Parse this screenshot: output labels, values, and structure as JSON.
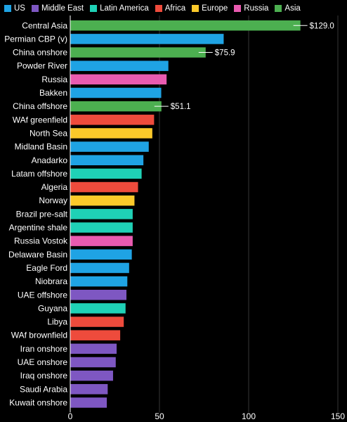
{
  "legend": [
    {
      "label": "US",
      "color": "#1fa3e4"
    },
    {
      "label": "Middle East",
      "color": "#7e57c2"
    },
    {
      "label": "Latin America",
      "color": "#1fd1b6"
    },
    {
      "label": "Africa",
      "color": "#ee4b3c"
    },
    {
      "label": "Europe",
      "color": "#fbc92a"
    },
    {
      "label": "Russia",
      "color": "#e95bb0"
    },
    {
      "label": "Asia",
      "color": "#4caf50"
    }
  ],
  "chart_data": {
    "type": "bar",
    "orientation": "horizontal",
    "xlim": [
      0,
      150
    ],
    "x_ticks": [
      0,
      50,
      100,
      150
    ],
    "grid": true,
    "legend_position": "top",
    "bars": [
      {
        "label": "Central Asia",
        "value": 129.0,
        "region": "Asia",
        "annotation": "$129.0"
      },
      {
        "label": "Permian CBP (v)",
        "value": 86,
        "region": "US"
      },
      {
        "label": "China onshore",
        "value": 75.9,
        "region": "Asia",
        "annotation": "$75.9"
      },
      {
        "label": "Powder River",
        "value": 55,
        "region": "US"
      },
      {
        "label": "Russia",
        "value": 54,
        "region": "Russia"
      },
      {
        "label": "Bakken",
        "value": 51,
        "region": "US"
      },
      {
        "label": "China offshore",
        "value": 51.1,
        "region": "Asia",
        "annotation": "$51.1"
      },
      {
        "label": "WAf greenfield",
        "value": 47,
        "region": "Africa"
      },
      {
        "label": "North Sea",
        "value": 46,
        "region": "Europe"
      },
      {
        "label": "Midland Basin",
        "value": 44,
        "region": "US"
      },
      {
        "label": "Anadarko",
        "value": 41,
        "region": "US"
      },
      {
        "label": "Latam offshore",
        "value": 40,
        "region": "Latin America"
      },
      {
        "label": "Algeria",
        "value": 38,
        "region": "Africa"
      },
      {
        "label": "Norway",
        "value": 36,
        "region": "Europe"
      },
      {
        "label": "Brazil pre-salt",
        "value": 35,
        "region": "Latin America"
      },
      {
        "label": "Argentine shale",
        "value": 35,
        "region": "Latin America"
      },
      {
        "label": "Russia Vostok",
        "value": 35,
        "region": "Russia"
      },
      {
        "label": "Delaware Basin",
        "value": 34.5,
        "region": "US"
      },
      {
        "label": "Eagle Ford",
        "value": 33,
        "region": "US"
      },
      {
        "label": "Niobrara",
        "value": 32,
        "region": "US"
      },
      {
        "label": "UAE offshore",
        "value": 31.5,
        "region": "Middle East"
      },
      {
        "label": "Guyana",
        "value": 31,
        "region": "Latin America"
      },
      {
        "label": "Libya",
        "value": 30,
        "region": "Africa"
      },
      {
        "label": "WAf brownfield",
        "value": 28,
        "region": "Africa"
      },
      {
        "label": "Iran onshore",
        "value": 26,
        "region": "Middle East"
      },
      {
        "label": "UAE onshore",
        "value": 25.5,
        "region": "Middle East"
      },
      {
        "label": "Iraq onshore",
        "value": 24,
        "region": "Middle East"
      },
      {
        "label": "Saudi Arabia",
        "value": 21,
        "region": "Middle East"
      },
      {
        "label": "Kuwait onshore",
        "value": 20.5,
        "region": "Middle East"
      }
    ]
  }
}
